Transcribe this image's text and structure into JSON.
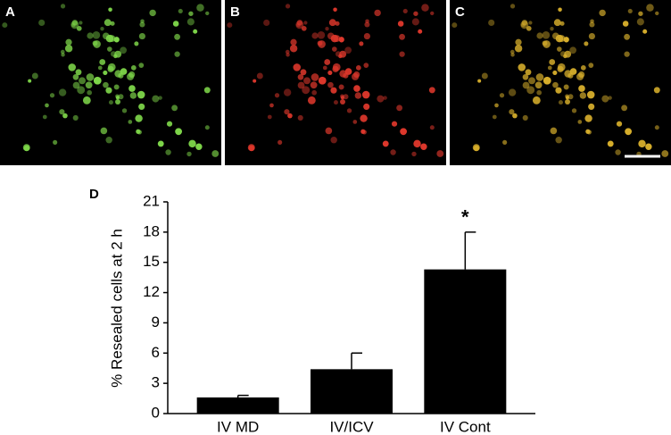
{
  "panel_labels": [
    "A",
    "B",
    "C"
  ],
  "chart_data": {
    "type": "bar",
    "panel_label": "D",
    "y_label": "% Resealed cells at 2 h",
    "categories": [
      "IV MD",
      "IV/ICV",
      "IV Cont"
    ],
    "values": [
      1.6,
      4.4,
      14.3
    ],
    "errors": [
      0.2,
      1.6,
      3.7
    ],
    "color": "#000000",
    "annotation": "*",
    "ylim": [
      0,
      21
    ],
    "yticks": [
      0,
      3,
      6,
      9,
      12,
      15,
      18,
      21
    ],
    "grid": false
  }
}
